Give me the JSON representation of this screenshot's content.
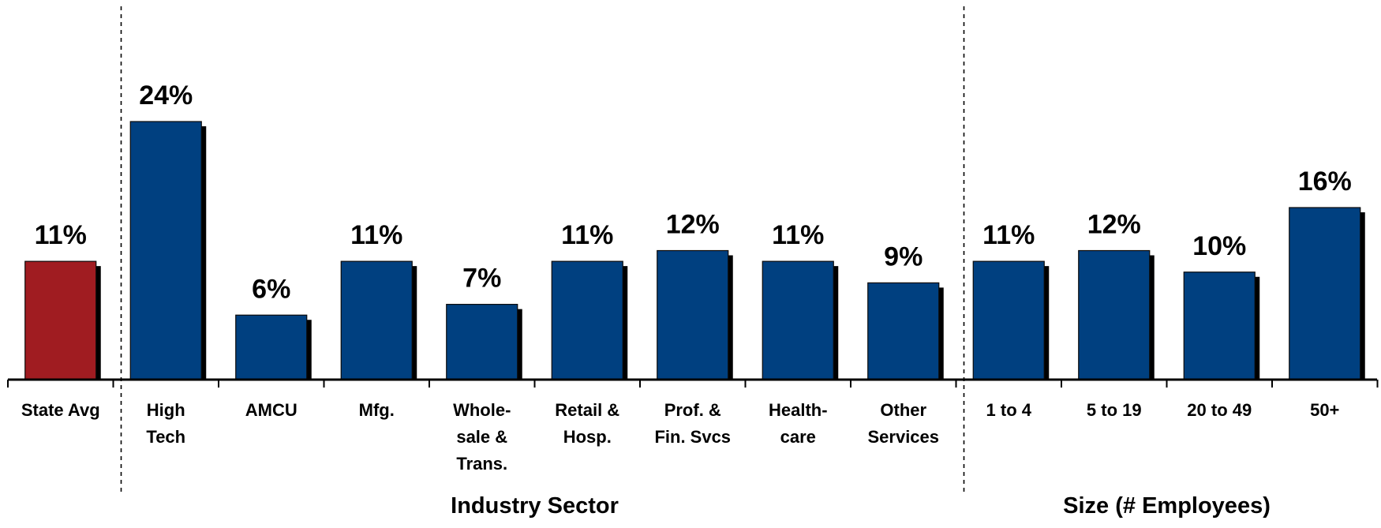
{
  "chart_data": {
    "type": "bar",
    "categories": [
      "State Avg",
      "High Tech",
      "AMCU",
      "Mfg.",
      "Whole-sale & Trans.",
      "Retail & Hosp.",
      "Prof.  & Fin. Svcs",
      "Health-care",
      "Other Services",
      "1 to 4",
      "5 to 19",
      "20 to 49",
      "50+"
    ],
    "category_lines": [
      [
        "State Avg"
      ],
      [
        "High",
        "Tech"
      ],
      [
        "AMCU"
      ],
      [
        "Mfg."
      ],
      [
        "Whole-",
        "sale &",
        "Trans."
      ],
      [
        "Retail &",
        "Hosp."
      ],
      [
        "Prof.  &",
        "Fin. Svcs"
      ],
      [
        "Health-",
        "care"
      ],
      [
        "Other",
        "Services"
      ],
      [
        "1 to 4"
      ],
      [
        "5 to 19"
      ],
      [
        "20 to 49"
      ],
      [
        "50+"
      ]
    ],
    "values": [
      11,
      24,
      6,
      11,
      7,
      11,
      12,
      11,
      9,
      11,
      12,
      10,
      16
    ],
    "value_labels": [
      "11%",
      "24%",
      "6%",
      "11%",
      "7%",
      "11%",
      "12%",
      "11%",
      "9%",
      "11%",
      "12%",
      "10%",
      "16%"
    ],
    "unit": "%",
    "ylim": [
      0,
      24
    ],
    "grid": false,
    "groups": [
      {
        "label": "",
        "start": 0,
        "end": 0
      },
      {
        "label": "Industry Sector",
        "start": 1,
        "end": 8
      },
      {
        "label": "Size (# Employees)",
        "start": 9,
        "end": 12
      }
    ],
    "colors": {
      "highlight": "#A01C21",
      "bar": "#004080",
      "shadow": "#000000",
      "text": "#000000"
    },
    "highlight_index": 0
  }
}
